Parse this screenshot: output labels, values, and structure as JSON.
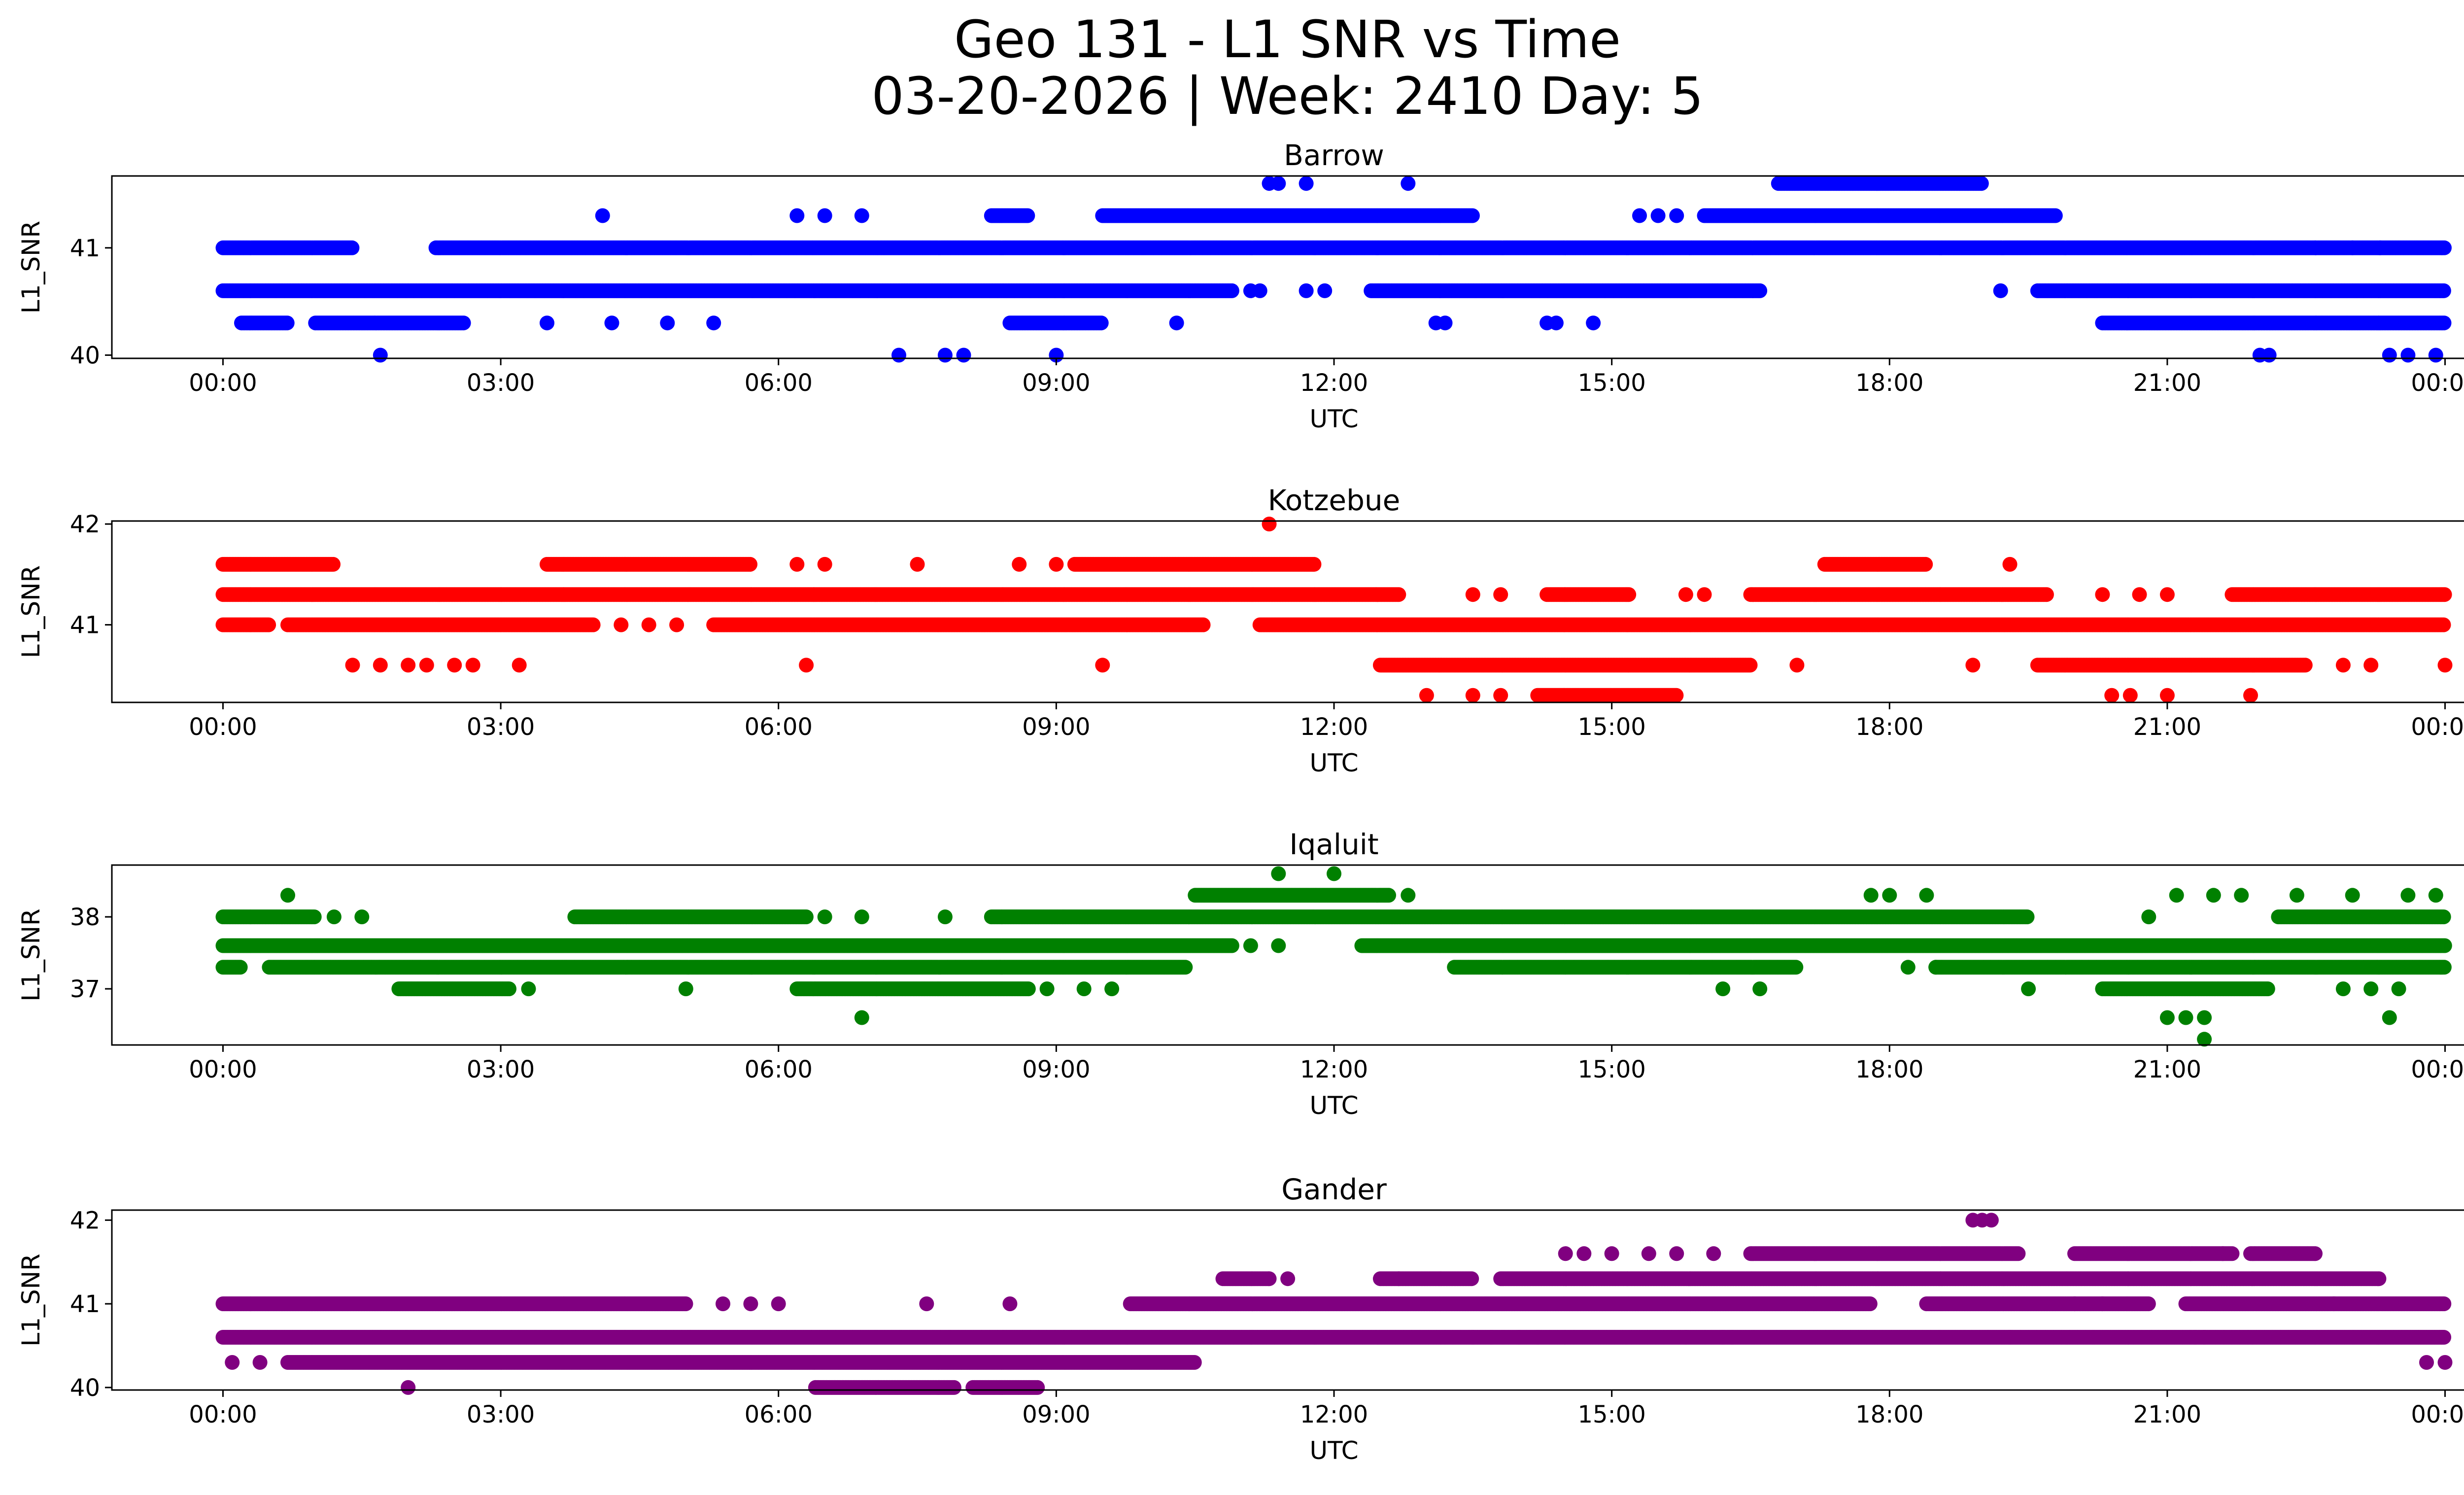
{
  "figure": {
    "title_line1": "Geo 131 - L1 SNR vs Time",
    "title_line2": "03-20-2026 | Week: 2410 Day: 5"
  },
  "chart_data": [
    {
      "type": "scatter",
      "title": "Barrow",
      "xlabel": "UTC",
      "ylabel": "L1_SNR",
      "color": "#0000ff",
      "x_tick_labels": [
        "00:00",
        "03:00",
        "06:00",
        "09:00",
        "12:00",
        "15:00",
        "18:00",
        "21:00",
        "00:00"
      ],
      "x_ticks_hours": [
        0,
        3,
        6,
        9,
        12,
        15,
        18,
        21,
        24
      ],
      "xlim_hours": [
        -1.2,
        25.2
      ],
      "ylim": [
        39.97,
        41.67
      ],
      "y_ticks": [
        40,
        41
      ],
      "y_tick_labels": [
        "40",
        "41"
      ],
      "dense_bands": [
        {
          "y": 41.0,
          "segments": [
            [
              0,
              1.4
            ],
            [
              2.3,
              24
            ]
          ]
        },
        {
          "y": 40.6,
          "segments": [
            [
              0,
              10.9
            ],
            [
              12.4,
              16.6
            ],
            [
              19.6,
              24
            ]
          ]
        },
        {
          "y": 40.3,
          "segments": [
            [
              0.2,
              0.7
            ],
            [
              1.0,
              2.6
            ],
            [
              8.5,
              9.5
            ],
            [
              20.3,
              24
            ]
          ]
        },
        {
          "y": 41.3,
          "segments": [
            [
              8.3,
              8.7
            ],
            [
              9.5,
              13.5
            ],
            [
              16.0,
              19.8
            ]
          ]
        },
        {
          "y": 41.6,
          "segments": [
            [
              16.8,
              19.0
            ]
          ]
        }
      ],
      "points": [
        [
          1.7,
          40.0
        ],
        [
          7.3,
          40.0
        ],
        [
          7.8,
          40.0
        ],
        [
          8.0,
          40.0
        ],
        [
          9.0,
          40.0
        ],
        [
          22.0,
          40.0
        ],
        [
          22.1,
          40.0
        ],
        [
          23.4,
          40.0
        ],
        [
          23.6,
          40.0
        ],
        [
          23.9,
          40.0
        ],
        [
          4.1,
          41.3
        ],
        [
          6.2,
          41.3
        ],
        [
          6.5,
          41.3
        ],
        [
          6.9,
          41.3
        ],
        [
          11.3,
          41.6
        ],
        [
          11.4,
          41.6
        ],
        [
          11.7,
          41.6
        ],
        [
          12.8,
          41.6
        ],
        [
          3.5,
          40.3
        ],
        [
          4.2,
          40.3
        ],
        [
          4.8,
          40.3
        ],
        [
          5.3,
          40.3
        ],
        [
          10.3,
          40.3
        ],
        [
          13.1,
          40.3
        ],
        [
          13.2,
          40.3
        ],
        [
          14.3,
          40.3
        ],
        [
          14.4,
          40.3
        ],
        [
          14.8,
          40.3
        ],
        [
          19.2,
          40.6
        ],
        [
          11.1,
          40.6
        ],
        [
          11.2,
          40.6
        ],
        [
          11.7,
          40.6
        ],
        [
          11.9,
          40.6
        ],
        [
          15.3,
          41.3
        ],
        [
          15.5,
          41.3
        ],
        [
          15.7,
          41.3
        ],
        [
          22.6,
          41.0
        ],
        [
          23.0,
          41.0
        ],
        [
          23.3,
          41.0
        ]
      ]
    },
    {
      "type": "scatter",
      "title": "Kotzebue",
      "xlabel": "UTC",
      "ylabel": "L1_SNR",
      "color": "#ff0000",
      "x_tick_labels": [
        "00:00",
        "03:00",
        "06:00",
        "09:00",
        "12:00",
        "15:00",
        "18:00",
        "21:00",
        "00:00"
      ],
      "x_ticks_hours": [
        0,
        3,
        6,
        9,
        12,
        15,
        18,
        21,
        24
      ],
      "xlim_hours": [
        -1.2,
        25.2
      ],
      "ylim": [
        40.23,
        42.03
      ],
      "y_ticks": [
        41,
        42
      ],
      "y_tick_labels": [
        "41",
        "42"
      ],
      "dense_bands": [
        {
          "y": 41.3,
          "segments": [
            [
              0,
              12.7
            ],
            [
              14.3,
              15.2
            ],
            [
              16.5,
              19.7
            ],
            [
              21.7,
              24
            ]
          ]
        },
        {
          "y": 41.0,
          "segments": [
            [
              0,
              0.5
            ],
            [
              0.7,
              4.0
            ],
            [
              5.3,
              10.6
            ],
            [
              11.2,
              24
            ]
          ]
        },
        {
          "y": 41.6,
          "segments": [
            [
              0,
              1.2
            ],
            [
              3.5,
              5.7
            ],
            [
              9.2,
              11.8
            ],
            [
              17.3,
              18.4
            ]
          ]
        },
        {
          "y": 40.6,
          "segments": [
            [
              12.5,
              16.5
            ],
            [
              19.6,
              22.5
            ]
          ]
        },
        {
          "y": 40.3,
          "segments": [
            [
              14.2,
              15.7
            ]
          ]
        }
      ],
      "points": [
        [
          11.3,
          42.0
        ],
        [
          1.4,
          40.6
        ],
        [
          1.7,
          40.6
        ],
        [
          2.0,
          40.6
        ],
        [
          2.2,
          40.6
        ],
        [
          2.5,
          40.6
        ],
        [
          2.7,
          40.6
        ],
        [
          3.2,
          40.6
        ],
        [
          6.3,
          40.6
        ],
        [
          9.5,
          40.6
        ],
        [
          17.0,
          40.6
        ],
        [
          18.9,
          40.6
        ],
        [
          22.9,
          40.6
        ],
        [
          23.2,
          40.6
        ],
        [
          24.0,
          40.6
        ],
        [
          13.0,
          40.3
        ],
        [
          13.5,
          40.3
        ],
        [
          13.8,
          40.3
        ],
        [
          20.4,
          40.3
        ],
        [
          20.6,
          40.3
        ],
        [
          21.0,
          40.3
        ],
        [
          21.9,
          40.3
        ],
        [
          19.3,
          41.6
        ],
        [
          13.5,
          41.3
        ],
        [
          13.8,
          41.3
        ],
        [
          15.8,
          41.3
        ],
        [
          16.0,
          41.3
        ],
        [
          20.3,
          41.3
        ],
        [
          20.7,
          41.3
        ],
        [
          21.0,
          41.3
        ],
        [
          6.2,
          41.6
        ],
        [
          6.5,
          41.6
        ],
        [
          8.6,
          41.6
        ],
        [
          9.0,
          41.6
        ],
        [
          7.5,
          41.6
        ],
        [
          4.3,
          41.0
        ],
        [
          4.6,
          41.0
        ],
        [
          4.9,
          41.0
        ]
      ]
    },
    {
      "type": "scatter",
      "title": "Iqaluit",
      "xlabel": "UTC",
      "ylabel": "L1_SNR",
      "color": "#008000",
      "x_tick_labels": [
        "00:00",
        "03:00",
        "06:00",
        "09:00",
        "12:00",
        "15:00",
        "18:00",
        "21:00",
        "00:00"
      ],
      "x_ticks_hours": [
        0,
        3,
        6,
        9,
        12,
        15,
        18,
        21,
        24
      ],
      "xlim_hours": [
        -1.2,
        25.2
      ],
      "ylim": [
        36.22,
        38.72
      ],
      "y_ticks": [
        37,
        38
      ],
      "y_tick_labels": [
        "37",
        "38"
      ],
      "dense_bands": [
        {
          "y": 37.6,
          "segments": [
            [
              0,
              10.9
            ],
            [
              12.3,
              24
            ]
          ]
        },
        {
          "y": 37.3,
          "segments": [
            [
              0,
              0.2
            ],
            [
              0.5,
              10.4
            ],
            [
              13.3,
              17.0
            ],
            [
              18.5,
              24
            ]
          ]
        },
        {
          "y": 38.0,
          "segments": [
            [
              0,
              1.0
            ],
            [
              3.8,
              6.3
            ],
            [
              8.3,
              19.5
            ],
            [
              22.2,
              24
            ]
          ]
        },
        {
          "y": 38.3,
          "segments": [
            [
              10.5,
              12.6
            ]
          ]
        },
        {
          "y": 37.0,
          "segments": [
            [
              1.9,
              3.1
            ],
            [
              6.2,
              8.7
            ],
            [
              20.3,
              22.1
            ]
          ]
        }
      ],
      "points": [
        [
          11.4,
          38.6
        ],
        [
          12.0,
          38.6
        ],
        [
          0.7,
          38.3
        ],
        [
          12.8,
          38.3
        ],
        [
          17.8,
          38.3
        ],
        [
          18.0,
          38.3
        ],
        [
          18.4,
          38.3
        ],
        [
          21.1,
          38.3
        ],
        [
          21.5,
          38.3
        ],
        [
          21.8,
          38.3
        ],
        [
          22.4,
          38.3
        ],
        [
          23.0,
          38.3
        ],
        [
          23.6,
          38.3
        ],
        [
          23.9,
          38.3
        ],
        [
          6.9,
          36.6
        ],
        [
          21.0,
          36.6
        ],
        [
          21.2,
          36.6
        ],
        [
          21.4,
          36.6
        ],
        [
          23.4,
          36.6
        ],
        [
          21.4,
          36.3
        ],
        [
          3.3,
          37.0
        ],
        [
          5.0,
          37.0
        ],
        [
          8.9,
          37.0
        ],
        [
          9.3,
          37.0
        ],
        [
          9.6,
          37.0
        ],
        [
          16.2,
          37.0
        ],
        [
          16.6,
          37.0
        ],
        [
          19.5,
          37.0
        ],
        [
          22.9,
          37.0
        ],
        [
          23.2,
          37.0
        ],
        [
          23.5,
          37.0
        ],
        [
          11.1,
          37.6
        ],
        [
          11.4,
          37.6
        ],
        [
          18.2,
          37.3
        ],
        [
          18.5,
          37.3
        ],
        [
          1.2,
          38.0
        ],
        [
          1.5,
          38.0
        ],
        [
          6.5,
          38.0
        ],
        [
          6.9,
          38.0
        ],
        [
          7.8,
          38.0
        ],
        [
          20.8,
          38.0
        ]
      ]
    },
    {
      "type": "scatter",
      "title": "Gander",
      "xlabel": "UTC",
      "ylabel": "L1_SNR",
      "color": "#800080",
      "x_tick_labels": [
        "00:00",
        "03:00",
        "06:00",
        "09:00",
        "12:00",
        "15:00",
        "18:00",
        "21:00",
        "00:00"
      ],
      "x_ticks_hours": [
        0,
        3,
        6,
        9,
        12,
        15,
        18,
        21,
        24
      ],
      "xlim_hours": [
        -1.2,
        25.2
      ],
      "ylim": [
        39.97,
        42.12
      ],
      "y_ticks": [
        40,
        41,
        42
      ],
      "y_tick_labels": [
        "40",
        "41",
        "42"
      ],
      "dense_bands": [
        {
          "y": 40.6,
          "segments": [
            [
              0,
              24
            ]
          ]
        },
        {
          "y": 41.0,
          "segments": [
            [
              0,
              5.0
            ],
            [
              9.8,
              17.8
            ],
            [
              18.4,
              20.8
            ],
            [
              21.2,
              24
            ]
          ]
        },
        {
          "y": 40.3,
          "segments": [
            [
              0.7,
              10.5
            ]
          ]
        },
        {
          "y": 40.0,
          "segments": [
            [
              6.4,
              7.9
            ],
            [
              8.1,
              8.8
            ]
          ]
        },
        {
          "y": 41.3,
          "segments": [
            [
              10.8,
              11.3
            ],
            [
              12.5,
              13.5
            ],
            [
              13.8,
              23.3
            ]
          ]
        },
        {
          "y": 41.6,
          "segments": [
            [
              16.5,
              19.4
            ],
            [
              20.0,
              21.7
            ],
            [
              21.9,
              22.6
            ]
          ]
        }
      ],
      "points": [
        [
          0.1,
          40.3
        ],
        [
          0.4,
          40.3
        ],
        [
          2.0,
          40.0
        ],
        [
          7.6,
          41.0
        ],
        [
          8.5,
          41.0
        ],
        [
          5.4,
          41.0
        ],
        [
          5.7,
          41.0
        ],
        [
          6.0,
          41.0
        ],
        [
          19.0,
          42.0
        ],
        [
          18.9,
          42.0
        ],
        [
          19.1,
          42.0
        ],
        [
          11.3,
          41.3
        ],
        [
          11.5,
          41.3
        ],
        [
          12.7,
          41.3
        ],
        [
          14.5,
          41.6
        ],
        [
          14.7,
          41.6
        ],
        [
          15.0,
          41.6
        ],
        [
          15.4,
          41.6
        ],
        [
          15.7,
          41.6
        ],
        [
          16.1,
          41.6
        ],
        [
          15.8,
          40.6
        ],
        [
          16.2,
          40.6
        ],
        [
          16.3,
          40.6
        ],
        [
          19.3,
          40.6
        ],
        [
          21.3,
          40.6
        ],
        [
          21.4,
          40.6
        ],
        [
          23.8,
          40.3
        ],
        [
          24.0,
          40.3
        ],
        [
          13.5,
          40.6
        ],
        [
          13.7,
          40.6
        ],
        [
          14.0,
          40.6
        ],
        [
          14.2,
          40.6
        ],
        [
          20.0,
          41.0
        ],
        [
          20.3,
          41.0
        ],
        [
          21.6,
          41.6
        ],
        [
          22.8,
          41.0
        ]
      ]
    }
  ]
}
